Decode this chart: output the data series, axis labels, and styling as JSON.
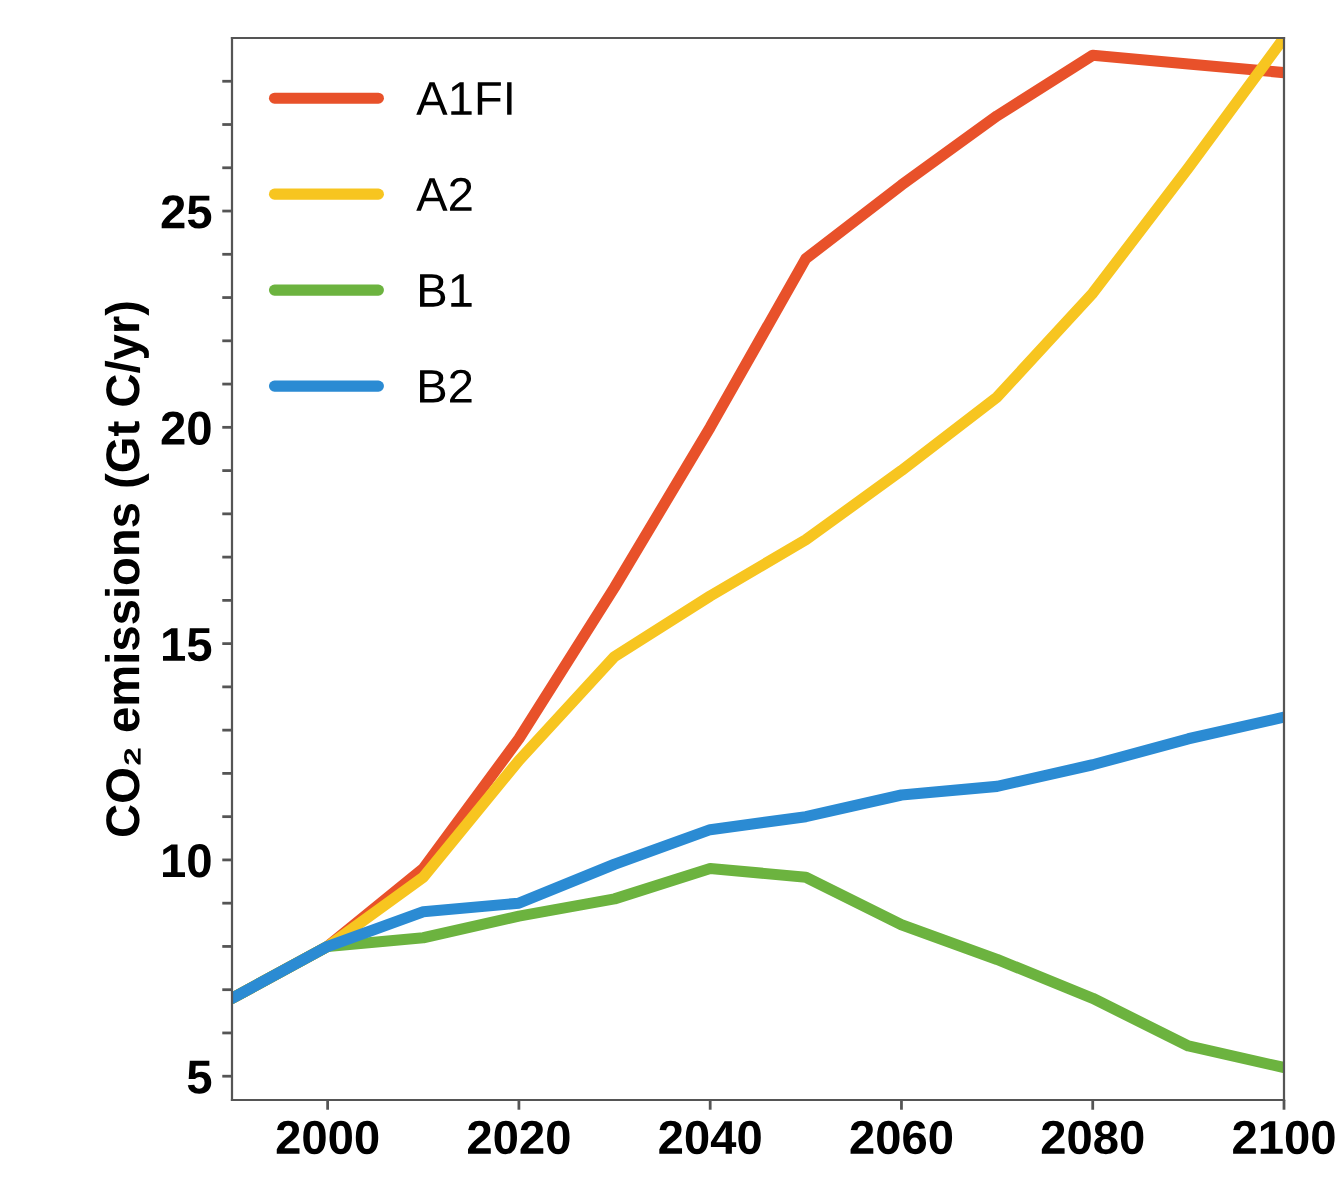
{
  "chart_data": {
    "type": "line",
    "ylabel": "CO₂ emissions (Gt C/yr)",
    "x": [
      1990,
      2000,
      2010,
      2020,
      2030,
      2040,
      2050,
      2060,
      2070,
      2080,
      2090,
      2100
    ],
    "series": [
      {
        "name": "A1FI",
        "color": "#e8512a",
        "values": [
          6.8,
          8.0,
          9.8,
          12.8,
          16.3,
          20.0,
          23.9,
          25.6,
          27.2,
          28.6,
          28.4,
          28.2
        ]
      },
      {
        "name": "A2",
        "color": "#f7c520",
        "values": [
          6.8,
          8.0,
          9.6,
          12.3,
          14.7,
          16.1,
          17.4,
          19.0,
          20.7,
          23.1,
          26.0,
          29.0
        ]
      },
      {
        "name": "B1",
        "color": "#6cb33f",
        "values": [
          6.8,
          8.0,
          8.2,
          8.7,
          9.1,
          9.8,
          9.6,
          8.5,
          7.7,
          6.8,
          5.7,
          5.2
        ]
      },
      {
        "name": "B2",
        "color": "#2b8bd3",
        "values": [
          6.8,
          8.0,
          8.8,
          9.0,
          9.9,
          10.7,
          11.0,
          11.5,
          11.7,
          12.2,
          12.8,
          13.3
        ]
      }
    ],
    "xlim": [
      1990,
      2100
    ],
    "xticks": [
      2000,
      2020,
      2040,
      2060,
      2080,
      2100
    ],
    "ylim": [
      4.45,
      29
    ],
    "yticks": [
      5,
      {
        "value": 6,
        "label": null
      },
      {
        "value": 7,
        "label": null
      },
      {
        "value": 8,
        "label": null
      },
      {
        "value": 9,
        "label": null
      },
      10,
      {
        "value": 11,
        "label": null
      },
      {
        "value": 12,
        "label": null
      },
      {
        "value": 13,
        "label": null
      },
      {
        "value": 14,
        "label": null
      },
      15,
      {
        "value": 16,
        "label": null
      },
      {
        "value": 17,
        "label": null
      },
      {
        "value": 18,
        "label": null
      },
      {
        "value": 19,
        "label": null
      },
      20,
      {
        "value": 21,
        "label": null
      },
      {
        "value": 22,
        "label": null
      },
      {
        "value": 23,
        "label": null
      },
      {
        "value": 24,
        "label": null
      },
      25,
      {
        "value": 26,
        "label": null
      },
      {
        "value": 27,
        "label": null
      },
      {
        "value": 28,
        "label": null
      }
    ],
    "grid": false,
    "legend": "top left",
    "marker": "none",
    "line_style": "solid"
  }
}
